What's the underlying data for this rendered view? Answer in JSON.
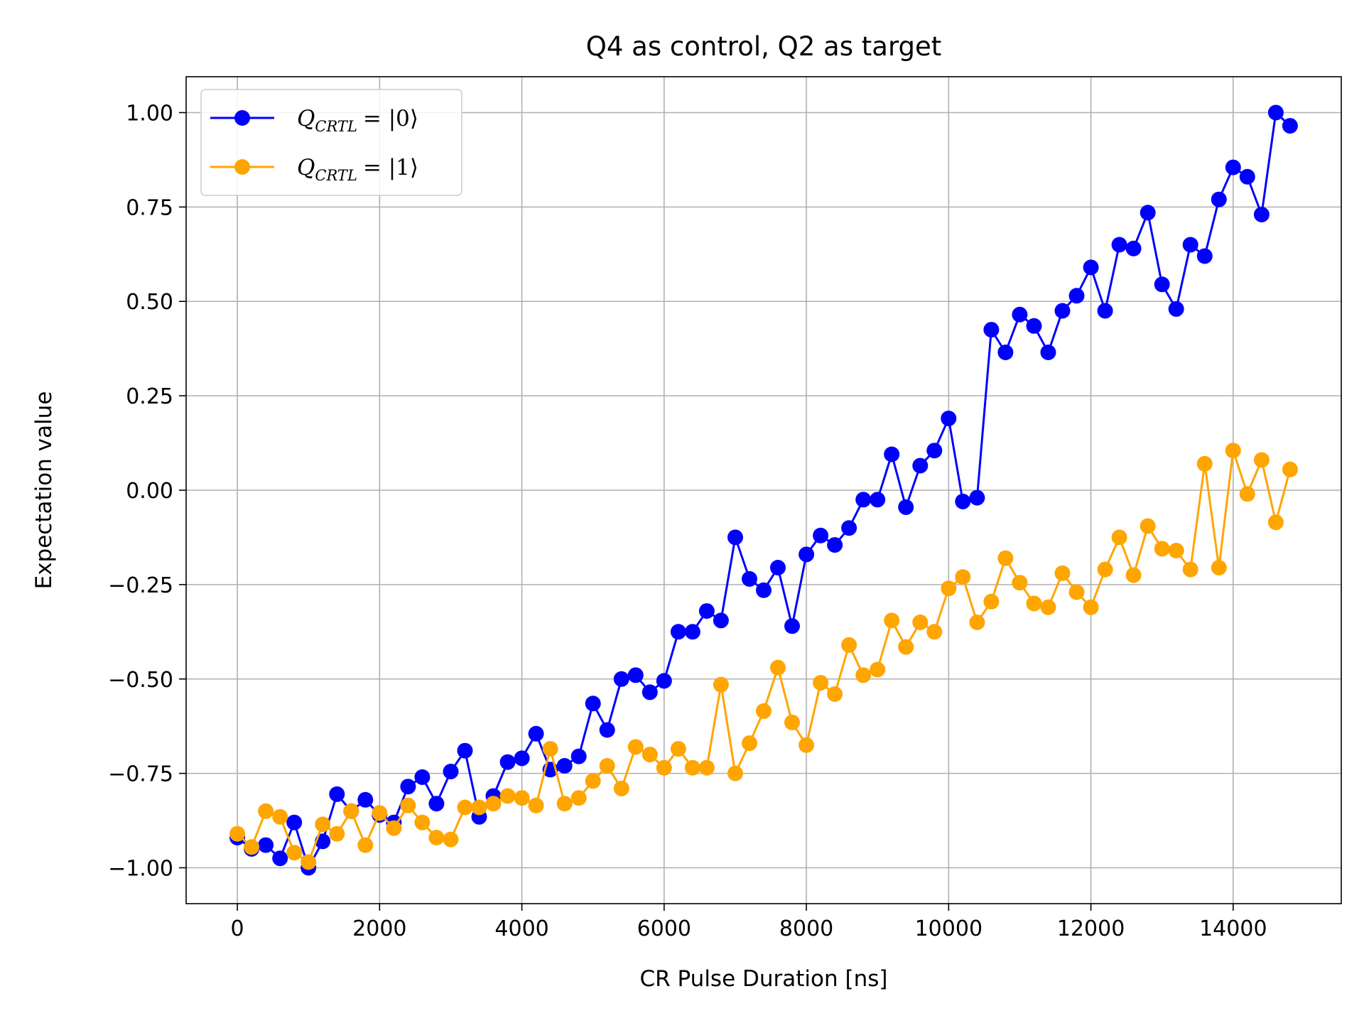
{
  "chart_data": {
    "type": "line",
    "title": "Q4 as control, Q2 as target",
    "xlabel": "CR Pulse Duration [ns]",
    "ylabel": "Expectation value",
    "xlim": [
      -720,
      15520
    ],
    "ylim": [
      -1.095,
      1.095
    ],
    "xticks": [
      0,
      2000,
      4000,
      6000,
      8000,
      10000,
      12000,
      14000
    ],
    "xtick_labels": [
      "0",
      "2000",
      "4000",
      "6000",
      "8000",
      "10000",
      "12000",
      "14000"
    ],
    "yticks": [
      1.0,
      0.75,
      0.5,
      0.25,
      0.0,
      -0.25,
      -0.5,
      -0.75,
      -1.0
    ],
    "ytick_labels": [
      "1.00",
      "0.75",
      "0.50",
      "0.25",
      "0.00",
      "−0.25",
      "−0.50",
      "−0.75",
      "−1.00"
    ],
    "grid": true,
    "legend_position": "top-left",
    "x": [
      0,
      200,
      400,
      600,
      800,
      1000,
      1200,
      1400,
      1600,
      1800,
      2000,
      2200,
      2400,
      2600,
      2800,
      3000,
      3200,
      3400,
      3600,
      3800,
      4000,
      4200,
      4400,
      4600,
      4800,
      5000,
      5200,
      5400,
      5600,
      5800,
      6000,
      6200,
      6400,
      6600,
      6800,
      7000,
      7200,
      7400,
      7600,
      7800,
      8000,
      8200,
      8400,
      8600,
      8800,
      9000,
      9200,
      9400,
      9600,
      9800,
      10000,
      10200,
      10400,
      10600,
      10800,
      11000,
      11200,
      11400,
      11600,
      11800,
      12000,
      12200,
      12400,
      12600,
      12800,
      13000,
      13200,
      13400,
      13600,
      13800,
      14000,
      14200,
      14400,
      14600,
      14800
    ],
    "series": [
      {
        "name": "Q_CRTL = |0⟩",
        "color": "#0000ff",
        "values": [
          -0.92,
          -0.95,
          -0.94,
          -0.975,
          -0.88,
          -1.0,
          -0.93,
          -0.805,
          -0.85,
          -0.82,
          -0.86,
          -0.88,
          -0.785,
          -0.76,
          -0.83,
          -0.745,
          -0.69,
          -0.865,
          -0.81,
          -0.72,
          -0.71,
          -0.645,
          -0.74,
          -0.73,
          -0.705,
          -0.565,
          -0.635,
          -0.5,
          -0.49,
          -0.535,
          -0.505,
          -0.375,
          -0.375,
          -0.32,
          -0.345,
          -0.125,
          -0.235,
          -0.265,
          -0.205,
          -0.36,
          -0.17,
          -0.12,
          -0.145,
          -0.1,
          -0.025,
          -0.025,
          0.095,
          -0.045,
          0.065,
          0.105,
          0.19,
          -0.03,
          -0.02,
          0.425,
          0.365,
          0.465,
          0.435,
          0.365,
          0.475,
          0.515,
          0.59,
          0.475,
          0.65,
          0.64,
          0.735,
          0.545,
          0.48,
          0.65,
          0.62,
          0.77,
          0.855,
          0.83,
          0.73,
          1.0,
          0.965
        ]
      },
      {
        "name": "Q_CRTL = |1⟩",
        "color": "#ffa500",
        "values": [
          -0.91,
          -0.945,
          -0.85,
          -0.865,
          -0.96,
          -0.985,
          -0.885,
          -0.91,
          -0.85,
          -0.94,
          -0.855,
          -0.895,
          -0.835,
          -0.88,
          -0.92,
          -0.925,
          -0.84,
          -0.84,
          -0.83,
          -0.81,
          -0.815,
          -0.835,
          -0.685,
          -0.83,
          -0.815,
          -0.77,
          -0.73,
          -0.79,
          -0.68,
          -0.7,
          -0.735,
          -0.685,
          -0.735,
          -0.735,
          -0.515,
          -0.75,
          -0.67,
          -0.585,
          -0.47,
          -0.615,
          -0.675,
          -0.51,
          -0.54,
          -0.41,
          -0.49,
          -0.475,
          -0.345,
          -0.415,
          -0.35,
          -0.375,
          -0.26,
          -0.23,
          -0.35,
          -0.295,
          -0.18,
          -0.245,
          -0.3,
          -0.31,
          -0.22,
          -0.27,
          -0.31,
          -0.21,
          -0.125,
          -0.225,
          -0.095,
          -0.155,
          -0.16,
          -0.21,
          0.07,
          -0.205,
          0.105,
          -0.01,
          0.08,
          -0.085,
          0.055
        ]
      }
    ]
  },
  "legend": {
    "entries": [
      {
        "q": "Q",
        "sub": "CRTL",
        "ket": "= |0⟩"
      },
      {
        "q": "Q",
        "sub": "CRTL",
        "ket": "= |1⟩"
      }
    ]
  }
}
